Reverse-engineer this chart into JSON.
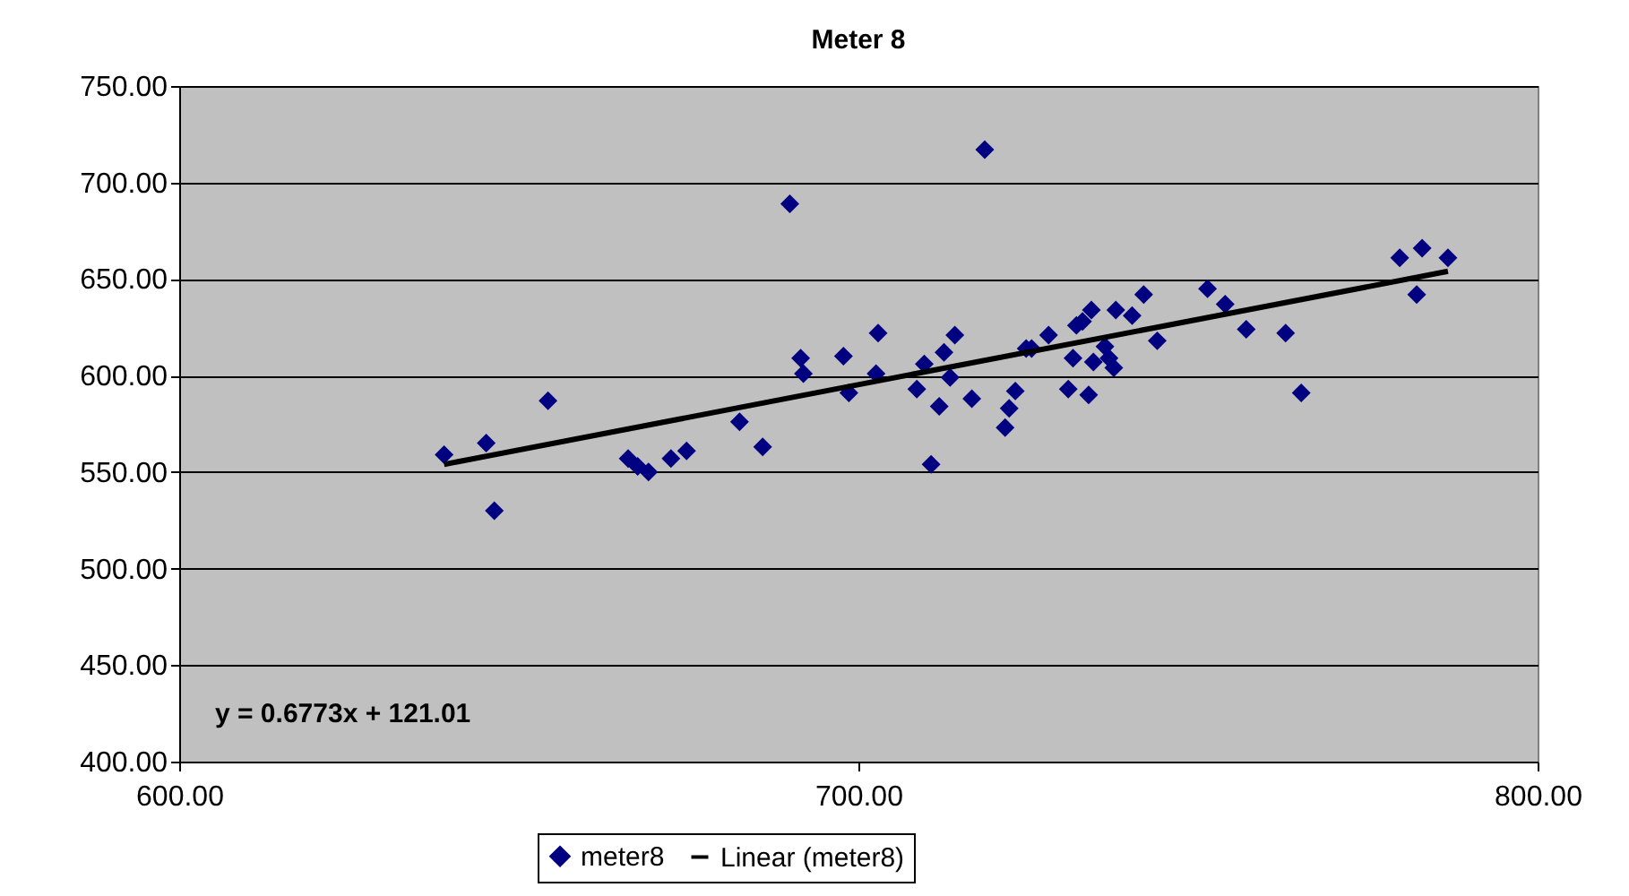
{
  "chart_data": {
    "type": "scatter",
    "title": "Meter 8",
    "xlim": [
      600,
      800
    ],
    "xticks": [
      {
        "value": 600,
        "label": "600.00"
      },
      {
        "value": 700,
        "label": "700.00"
      },
      {
        "value": 800,
        "label": "800.00"
      }
    ],
    "ylim": [
      400,
      750
    ],
    "yticks": [
      {
        "value": 400,
        "label": "400.00"
      },
      {
        "value": 450,
        "label": "450.00"
      },
      {
        "value": 500,
        "label": "500.00"
      },
      {
        "value": 550,
        "label": "550.00"
      },
      {
        "value": 600,
        "label": "600.00"
      },
      {
        "value": 650,
        "label": "650.00"
      },
      {
        "value": 700,
        "label": "700.00"
      },
      {
        "value": 750,
        "label": "750.00"
      }
    ],
    "grid": "y",
    "legend": "bottom",
    "annotations": [
      "y = 0.6773x + 121.01"
    ],
    "series": [
      {
        "name": "meter8",
        "color": "#000080",
        "marker": "diamond",
        "x": [
          639.0,
          645.2,
          646.4,
          654.3,
          666.1,
          667.5,
          669.1,
          672.4,
          674.7,
          682.5,
          685.9,
          689.9,
          691.5,
          691.9,
          697.8,
          698.6,
          702.9,
          702.6,
          708.6,
          709.7,
          711.9,
          712.6,
          714.2,
          713.5,
          710.7,
          716.7,
          718.6,
          721.6,
          722.2,
          723.1,
          724.7,
          725.5,
          728.0,
          730.9,
          731.6,
          732.1,
          733.0,
          733.9,
          734.3,
          734.6,
          736.3,
          736.9,
          737.6,
          737.9,
          740.3,
          742.0,
          744.0,
          751.4,
          754.0,
          757.1,
          762.9,
          765.2,
          779.7,
          783.0,
          782.2,
          786.8
        ],
        "values": [
          559,
          565,
          530,
          587,
          557,
          553,
          550,
          557,
          561,
          576,
          563,
          689,
          609,
          601,
          610,
          591,
          622,
          601,
          593,
          606,
          584,
          612,
          621,
          599,
          554,
          588,
          717,
          573,
          583,
          592,
          614,
          614,
          621,
          593,
          609,
          626,
          628,
          590,
          634,
          607,
          615,
          609,
          604,
          634,
          631,
          642,
          618,
          645,
          637,
          624,
          622,
          591,
          661,
          666,
          642,
          661
        ]
      },
      {
        "name": "Linear (meter8)",
        "type": "line",
        "color": "#000000",
        "x": [
          639.0,
          786.8
        ],
        "values": [
          554,
          654
        ]
      }
    ]
  }
}
